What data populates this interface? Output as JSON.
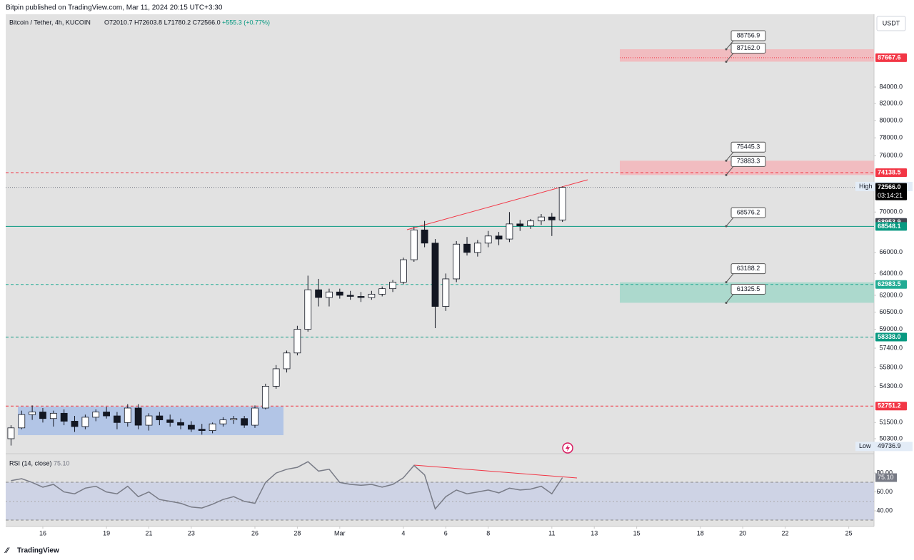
{
  "chart_data": {
    "type": "candlestick",
    "publisher": "Bitpin published on TradingView.com, Mar 11, 2024 20:15 UTC+3:30",
    "title": "Bitcoin / Tether, 4h, KUCOIN",
    "ohlc": "O72010.7 H72603.8 L71780.2 C72566.0",
    "change": "+555.3 (+0.77%)",
    "currency": "USDT",
    "brand": "TradingView",
    "log_scale": true,
    "up_color": "#ffffff",
    "down_color": "#131722",
    "outline_color": "#131722",
    "xlim": [
      14.25,
      55.19
    ],
    "xticks": [
      16,
      19,
      21,
      23,
      26,
      28,
      {
        "value": 30,
        "label": "Mar"
      },
      {
        "value": 33,
        "label": "4"
      },
      {
        "value": 35,
        "label": "6"
      },
      {
        "value": 37,
        "label": "8"
      },
      {
        "value": 40,
        "label": "11"
      },
      {
        "value": 42,
        "label": "13"
      },
      {
        "value": 44,
        "label": "15"
      },
      {
        "value": 47,
        "label": "18"
      },
      {
        "value": 49,
        "label": "20"
      },
      {
        "value": 51,
        "label": "22"
      },
      {
        "value": 54,
        "label": "25"
      }
    ],
    "ylim": [
      49520,
      93400
    ],
    "yticks": [
      {
        "value": 84000,
        "label": "84000.0"
      },
      {
        "value": 82000,
        "label": "82000.0"
      },
      {
        "value": 80000,
        "label": "80000.0"
      },
      {
        "value": 78000,
        "label": "78000.0"
      },
      {
        "value": 76000,
        "label": "76000.0"
      },
      {
        "value": 70000,
        "label": "70000.0"
      },
      {
        "value": 66000,
        "label": "66000.0"
      },
      {
        "value": 64000,
        "label": "64000.0"
      },
      {
        "value": 62000,
        "label": "62000.0"
      },
      {
        "value": 60500,
        "label": "60500.0"
      },
      {
        "value": 59000,
        "label": "59000.0"
      },
      {
        "value": 57400,
        "label": "57400.0"
      },
      {
        "value": 55800,
        "label": "55800.0"
      },
      {
        "value": 54300,
        "label": "54300.0"
      },
      {
        "value": 51500,
        "label": "51500.0"
      },
      {
        "value": 50300,
        "label": "50300.0"
      }
    ],
    "candles": {
      "x": [
        14.5,
        15,
        15.5,
        16,
        16.5,
        17,
        17.5,
        18,
        18.5,
        19,
        19.5,
        20,
        20.5,
        21,
        21.5,
        22,
        22.5,
        23,
        23.5,
        24,
        24.5,
        25,
        25.5,
        26,
        26.5,
        27,
        27.5,
        28,
        28.5,
        29,
        29.5,
        30,
        30.5,
        31,
        31.5,
        32,
        32.5,
        33,
        33.5,
        34,
        34.5,
        35,
        35.5,
        36,
        36.5,
        37,
        37.5,
        38,
        38.5,
        39,
        39.5,
        40,
        40.5
      ],
      "open": [
        50300,
        51100,
        52100,
        52300,
        51800,
        52200,
        51600,
        51200,
        51900,
        52300,
        52000,
        51500,
        52600,
        51300,
        52000,
        51700,
        51500,
        51300,
        51000,
        50900,
        51400,
        51700,
        51800,
        51300,
        52600,
        54300,
        55700,
        57000,
        59000,
        62500,
        61800,
        62300,
        62000,
        61900,
        61800,
        62100,
        62600,
        63200,
        65300,
        68200,
        66900,
        61000,
        63500,
        66800,
        66000,
        66900,
        67600,
        67300,
        68800,
        68600,
        69100,
        69500,
        69200
      ],
      "high": [
        51300,
        52400,
        52800,
        52600,
        52400,
        52500,
        52000,
        52100,
        52500,
        52700,
        52300,
        52900,
        52900,
        52200,
        52300,
        52100,
        51800,
        51600,
        51400,
        51500,
        51900,
        52000,
        52000,
        52800,
        54500,
        56000,
        57200,
        59300,
        63800,
        63500,
        62600,
        62600,
        62400,
        62300,
        62400,
        62800,
        63400,
        65500,
        68500,
        69100,
        67300,
        64000,
        67100,
        67500,
        67200,
        68100,
        68000,
        70000,
        69200,
        69300,
        69800,
        69900,
        72659
      ],
      "low": [
        49800,
        51000,
        51700,
        51500,
        51200,
        51300,
        50800,
        51000,
        51600,
        51800,
        51000,
        51200,
        51000,
        50900,
        51300,
        51200,
        51000,
        50800,
        50600,
        50700,
        51200,
        51400,
        51100,
        51100,
        52500,
        54100,
        55400,
        56800,
        58800,
        61000,
        61000,
        61700,
        61600,
        61400,
        61600,
        61900,
        62300,
        63000,
        65100,
        66500,
        59100,
        60600,
        63200,
        65700,
        65600,
        66500,
        66700,
        67000,
        68100,
        68300,
        68700,
        67600,
        69000
      ],
      "close": [
        51100,
        52100,
        52300,
        51800,
        52200,
        51600,
        51200,
        51900,
        52300,
        52000,
        51500,
        52600,
        51300,
        52000,
        51700,
        51500,
        51300,
        51000,
        50900,
        51400,
        51700,
        51800,
        51300,
        52600,
        54300,
        55700,
        57000,
        59000,
        62500,
        61800,
        62300,
        62000,
        61900,
        61800,
        62100,
        62600,
        63200,
        65300,
        68200,
        66900,
        61000,
        63500,
        66800,
        66000,
        66900,
        67600,
        67300,
        68800,
        68600,
        69100,
        69500,
        69200,
        72566
      ]
    },
    "zones": [
      {
        "high": 88756.9,
        "low": {
          "value": 87162,
          "label": "87162.0"
        },
        "color": "#f3b8bd"
      },
      {
        "high": 75445.3,
        "low": 73883.3,
        "color": "#f3b8bd"
      },
      {
        "high": 63188.2,
        "low": 61325.5,
        "color": "#a6d8cb"
      }
    ],
    "levels": [
      68576.2
    ],
    "price_tags": [
      {
        "value": 87667.6,
        "color": "#f23645",
        "line": "dotted"
      },
      {
        "value": 74138.5,
        "color": "#f23645",
        "line": "dashed"
      },
      {
        "value": 72659,
        "label": "72659.0",
        "name": "High"
      },
      {
        "value": 72566,
        "label": "72566.0",
        "sub": "03:14:21",
        "color": "#000000",
        "line": "dotted"
      },
      {
        "value": 68953.9,
        "color": "#434651"
      },
      {
        "value": 68548.1,
        "color": "#089981",
        "line": "solid"
      },
      {
        "value": 62983.5,
        "color": "#22ab94",
        "line": "dashed"
      },
      {
        "value": 58338,
        "label": "58338.0",
        "color": "#089981",
        "line": "dashed"
      },
      {
        "value": 52751.2,
        "color": "#f23645",
        "line": "dashed"
      },
      {
        "value": 49736.9,
        "name": "Low"
      }
    ],
    "rsi": {
      "title": "RSI (14, close)",
      "value_label": "75.10",
      "color": "#787b86",
      "ylim": [
        25.7,
        97.4
      ],
      "yticks": [
        {
          "value": 80,
          "label": "80.00"
        },
        {
          "value": 60,
          "label": "60.00"
        },
        {
          "value": 40,
          "label": "40.00"
        }
      ],
      "values": [
        72,
        74,
        70,
        65,
        68,
        60,
        58,
        64,
        66,
        60,
        58,
        66,
        55,
        60,
        52,
        50,
        48,
        44,
        43,
        47,
        52,
        55,
        50,
        48,
        70,
        80,
        84,
        86,
        92,
        82,
        84,
        70,
        68,
        67,
        68,
        65,
        68,
        75,
        88,
        78,
        42,
        55,
        62,
        58,
        60,
        62,
        59,
        64,
        62,
        63,
        66,
        58,
        75.1
      ]
    }
  }
}
